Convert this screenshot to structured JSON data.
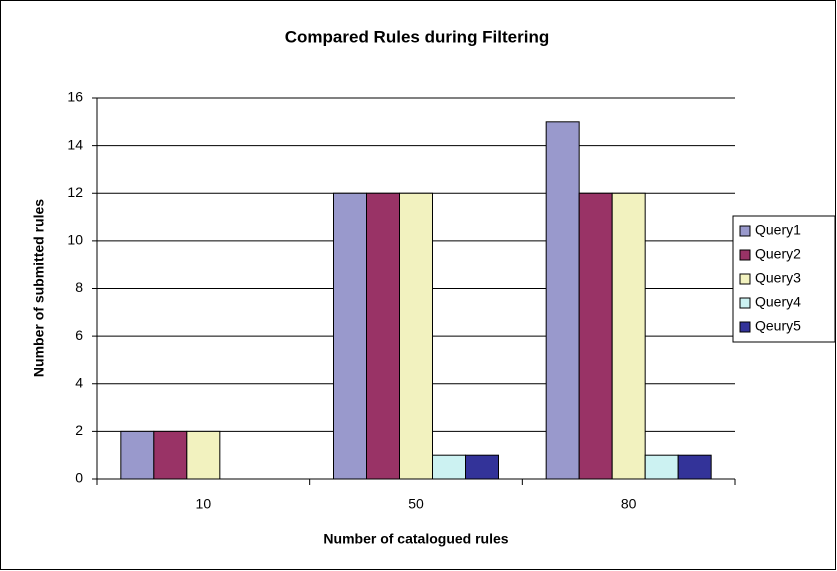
{
  "chart_data": {
    "type": "bar",
    "title": "Compared Rules during Filtering",
    "x_label": "Number of catalogued rules",
    "y_label": "Number of submitted rules",
    "categories": [
      "10",
      "50",
      "80"
    ],
    "series": [
      {
        "name": "Query1",
        "color": "#9999cc",
        "values": [
          2,
          12,
          15
        ]
      },
      {
        "name": "Query2",
        "color": "#993366",
        "values": [
          2,
          12,
          12
        ]
      },
      {
        "name": "Query3",
        "color": "#f2f2bf",
        "values": [
          2,
          12,
          12
        ]
      },
      {
        "name": "Query4",
        "color": "#ccf2f2",
        "values": [
          null,
          1,
          1
        ]
      },
      {
        "name": "Qeury5",
        "color": "#333399",
        "values": [
          null,
          1,
          1
        ]
      }
    ],
    "ylim": [
      0,
      16
    ],
    "yticks": [
      0,
      2,
      4,
      6,
      8,
      10,
      12,
      14,
      16
    ],
    "grid": true,
    "legend": "right"
  }
}
